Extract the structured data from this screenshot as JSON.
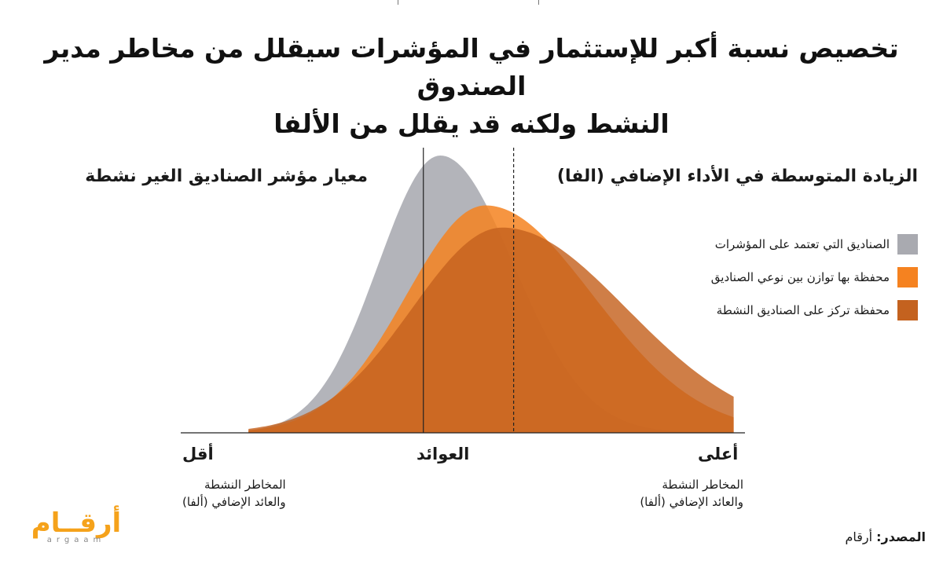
{
  "title_line1": "تخصيص نسبة أكبر للإستثمار في المؤشرات سيقلل من مخاطر مدير الصندوق",
  "title_line2": "النشط ولكنه قد يقلل من الألفا",
  "left_heading": "معيار مؤشر الصناديق الغير نشطة",
  "right_heading": "الزيادة المتوسطة في الأداء الإضافي (الفا)",
  "legend": [
    {
      "label": "الصناديق التي تعتمد على المؤشرات",
      "color": "#a9aab0"
    },
    {
      "label": "محفظة بها توازن بين نوعي الصناديق",
      "color": "#f58220"
    },
    {
      "label": "محفظة تركز على الصناديق النشطة",
      "color": "#c4621f"
    }
  ],
  "axis": {
    "left_label": "أقل",
    "center_label": "العوائد",
    "right_label": "أعلى",
    "left_desc_1": "المخاطر النشطة",
    "left_desc_2": "والعائد الإضافي (ألفا)",
    "right_desc_1": "المخاطر النشطة",
    "right_desc_2": "والعائد الإضافي (ألفا)"
  },
  "brand": {
    "name": "أرقــام",
    "latin": "argaam"
  },
  "source": {
    "label": "المصدر:",
    "value": "أرقام"
  },
  "chart_data": {
    "type": "area",
    "title": "تخصيص نسبة أكبر للإستثمار في المؤشرات سيقلل من مخاطر مدير الصندوق النشط ولكنه قد يقلل من الألفا",
    "xlabel": "العوائد",
    "x_range": [
      0,
      100
    ],
    "y_range": [
      0,
      1
    ],
    "grid": false,
    "legend_position": "right",
    "series": [
      {
        "name": "الصناديق التي تعتمد على المؤشرات",
        "peak_x": 46,
        "peak_y": 1.0,
        "width_left": 11,
        "width_right": 13,
        "color": "#a9aab0"
      },
      {
        "name": "محفظة بها توازن بين نوعي الصناديق",
        "peak_x": 54,
        "peak_y": 0.82,
        "width_left": 14,
        "width_right": 19,
        "color": "#f58220"
      },
      {
        "name": "محفظة تركز على الصناديق النشطة",
        "peak_x": 57,
        "peak_y": 0.74,
        "width_left": 16,
        "width_right": 22,
        "color": "#c4621f"
      }
    ],
    "reference_lines": [
      {
        "name": "benchmark",
        "x": 43,
        "style": "solid"
      },
      {
        "name": "average-alpha",
        "x": 59,
        "style": "dashed"
      }
    ]
  }
}
